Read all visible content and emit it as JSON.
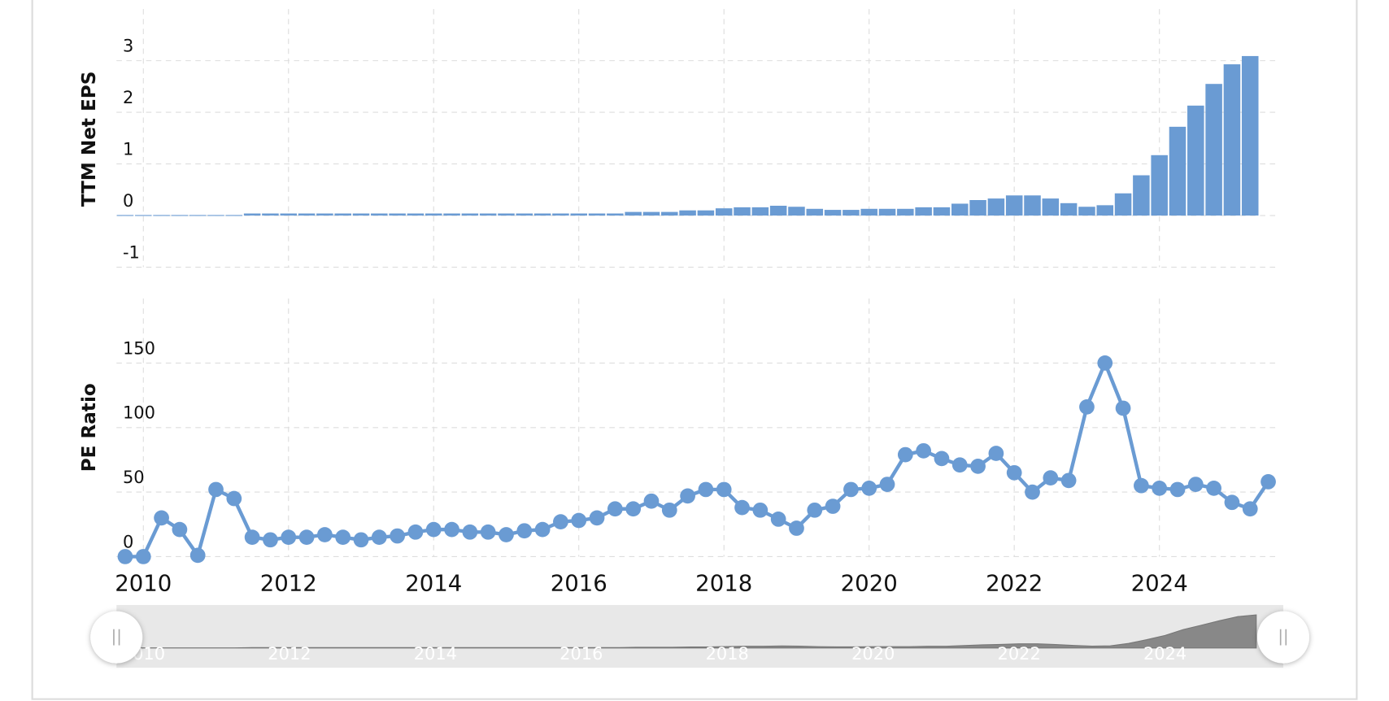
{
  "chart_data": [
    {
      "type": "bar",
      "y_label": "TTM Net EPS",
      "color": "#6a9bd3",
      "x": [
        2009.75,
        2010,
        2010.25,
        2010.5,
        2010.75,
        2011,
        2011.25,
        2011.5,
        2011.75,
        2012,
        2012.25,
        2012.5,
        2012.75,
        2013,
        2013.25,
        2013.5,
        2013.75,
        2014,
        2014.25,
        2014.5,
        2014.75,
        2015,
        2015.25,
        2015.5,
        2015.75,
        2016,
        2016.25,
        2016.5,
        2016.75,
        2017,
        2017.25,
        2017.5,
        2017.75,
        2018,
        2018.25,
        2018.5,
        2018.75,
        2019,
        2019.25,
        2019.5,
        2019.75,
        2020,
        2020.25,
        2020.5,
        2020.75,
        2021,
        2021.25,
        2021.5,
        2021.75,
        2022,
        2022.25,
        2022.5,
        2022.75,
        2023,
        2023.25,
        2023.5,
        2023.75,
        2024,
        2024.25,
        2024.5,
        2024.75,
        2025,
        2025.25,
        2025.5
      ],
      "values": [
        0.01,
        0.01,
        0.01,
        0.01,
        0.01,
        0.01,
        0.01,
        0.04,
        0.04,
        0.04,
        0.04,
        0.04,
        0.04,
        0.04,
        0.04,
        0.04,
        0.04,
        0.04,
        0.04,
        0.04,
        0.04,
        0.04,
        0.04,
        0.04,
        0.04,
        0.04,
        0.04,
        0.04,
        0.07,
        0.07,
        0.07,
        0.1,
        0.1,
        0.14,
        0.16,
        0.16,
        0.19,
        0.17,
        0.13,
        0.11,
        0.11,
        0.13,
        0.13,
        0.13,
        0.16,
        0.16,
        0.23,
        0.3,
        0.33,
        0.39,
        0.39,
        0.33,
        0.24,
        0.17,
        0.2,
        0.43,
        0.78,
        1.17,
        1.72,
        2.13,
        2.55,
        2.93,
        3.09,
        null
      ],
      "xlim": [
        2009.63,
        2025.62
      ],
      "xticks": [
        2010,
        2012,
        2014,
        2016,
        2018,
        2020,
        2022,
        2024
      ],
      "ylim": [
        -1,
        4
      ],
      "yticks": [
        -1,
        0,
        1,
        2,
        3
      ],
      "grid": true
    },
    {
      "type": "line",
      "y_label": "PE Ratio",
      "color": "#6a9bd3",
      "x": [
        2009.75,
        2010,
        2010.25,
        2010.5,
        2010.75,
        2011,
        2011.25,
        2011.5,
        2011.75,
        2012,
        2012.25,
        2012.5,
        2012.75,
        2013,
        2013.25,
        2013.5,
        2013.75,
        2014,
        2014.25,
        2014.5,
        2014.75,
        2015,
        2015.25,
        2015.5,
        2015.75,
        2016,
        2016.25,
        2016.5,
        2016.75,
        2017,
        2017.25,
        2017.5,
        2017.75,
        2018,
        2018.25,
        2018.5,
        2018.75,
        2019,
        2019.25,
        2019.5,
        2019.75,
        2020,
        2020.25,
        2020.5,
        2020.75,
        2021,
        2021.25,
        2021.5,
        2021.75,
        2022,
        2022.25,
        2022.5,
        2022.75,
        2023,
        2023.25,
        2023.5,
        2023.75,
        2024,
        2024.25,
        2024.5,
        2024.75,
        2025,
        2025.25,
        2025.5
      ],
      "values": [
        0,
        0,
        30,
        21,
        1,
        52,
        45,
        15,
        13,
        15,
        15,
        17,
        15,
        13,
        15,
        16,
        19,
        21,
        21,
        19,
        19,
        17,
        20,
        21,
        27,
        28,
        30,
        37,
        37,
        43,
        36,
        47,
        52,
        52,
        38,
        36,
        29,
        22,
        36,
        39,
        52,
        53,
        56,
        79,
        82,
        76,
        71,
        70,
        80,
        65,
        50,
        61,
        59,
        116,
        150,
        115,
        55,
        53,
        52,
        56,
        53,
        42,
        37,
        58
      ],
      "xlim": [
        2009.63,
        2025.62
      ],
      "xticks": [
        2010,
        2012,
        2014,
        2016,
        2018,
        2020,
        2022,
        2024
      ],
      "ylim": [
        0,
        200
      ],
      "yticks": [
        0,
        50,
        100,
        150
      ],
      "grid": true
    }
  ]
}
